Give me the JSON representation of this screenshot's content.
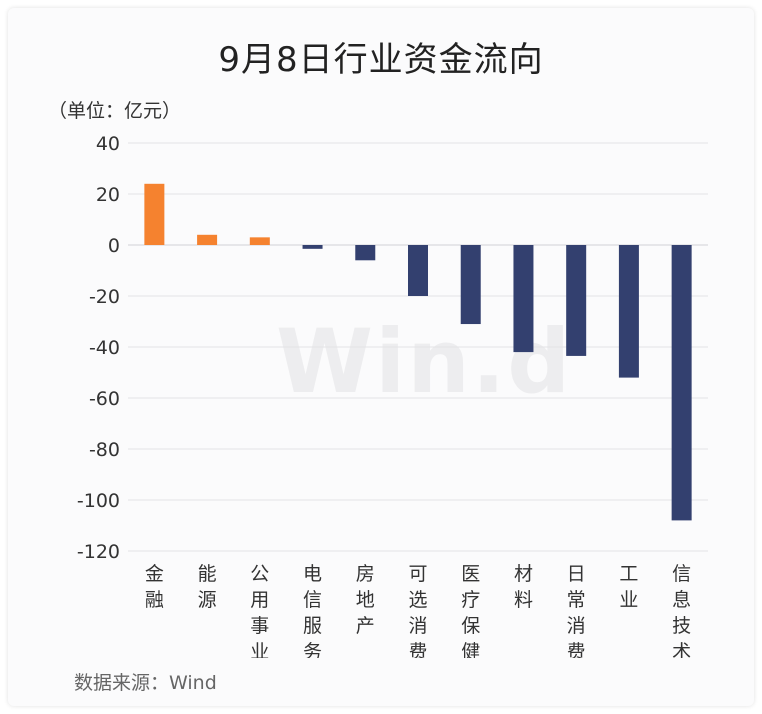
{
  "page": {
    "title": "9月8日行业资金流向",
    "unit_label": "（单位：亿元）",
    "source_label": "数据来源：Wind",
    "watermark": "Win.d"
  },
  "colors": {
    "positive": "#F5822F",
    "negative": "#33406F",
    "grid": "#e3e3e6",
    "tick_text": "#333333"
  },
  "chart_data": {
    "type": "bar",
    "title": "9月8日行业资金流向",
    "ylabel": "（单位：亿元）",
    "ylim": [
      -120,
      40
    ],
    "yticks": [
      40,
      20,
      0,
      -20,
      -40,
      -60,
      -80,
      -100,
      -120
    ],
    "grid": true,
    "categories": [
      "金融",
      "能源",
      "公用事业",
      "电信服务",
      "房地产",
      "可选消费",
      "医疗保健",
      "材料",
      "日常消费",
      "工业",
      "信息技术"
    ],
    "values": [
      24,
      4,
      3,
      -1.5,
      -6,
      -20,
      -31,
      -42,
      -43.5,
      -52,
      -108
    ]
  }
}
